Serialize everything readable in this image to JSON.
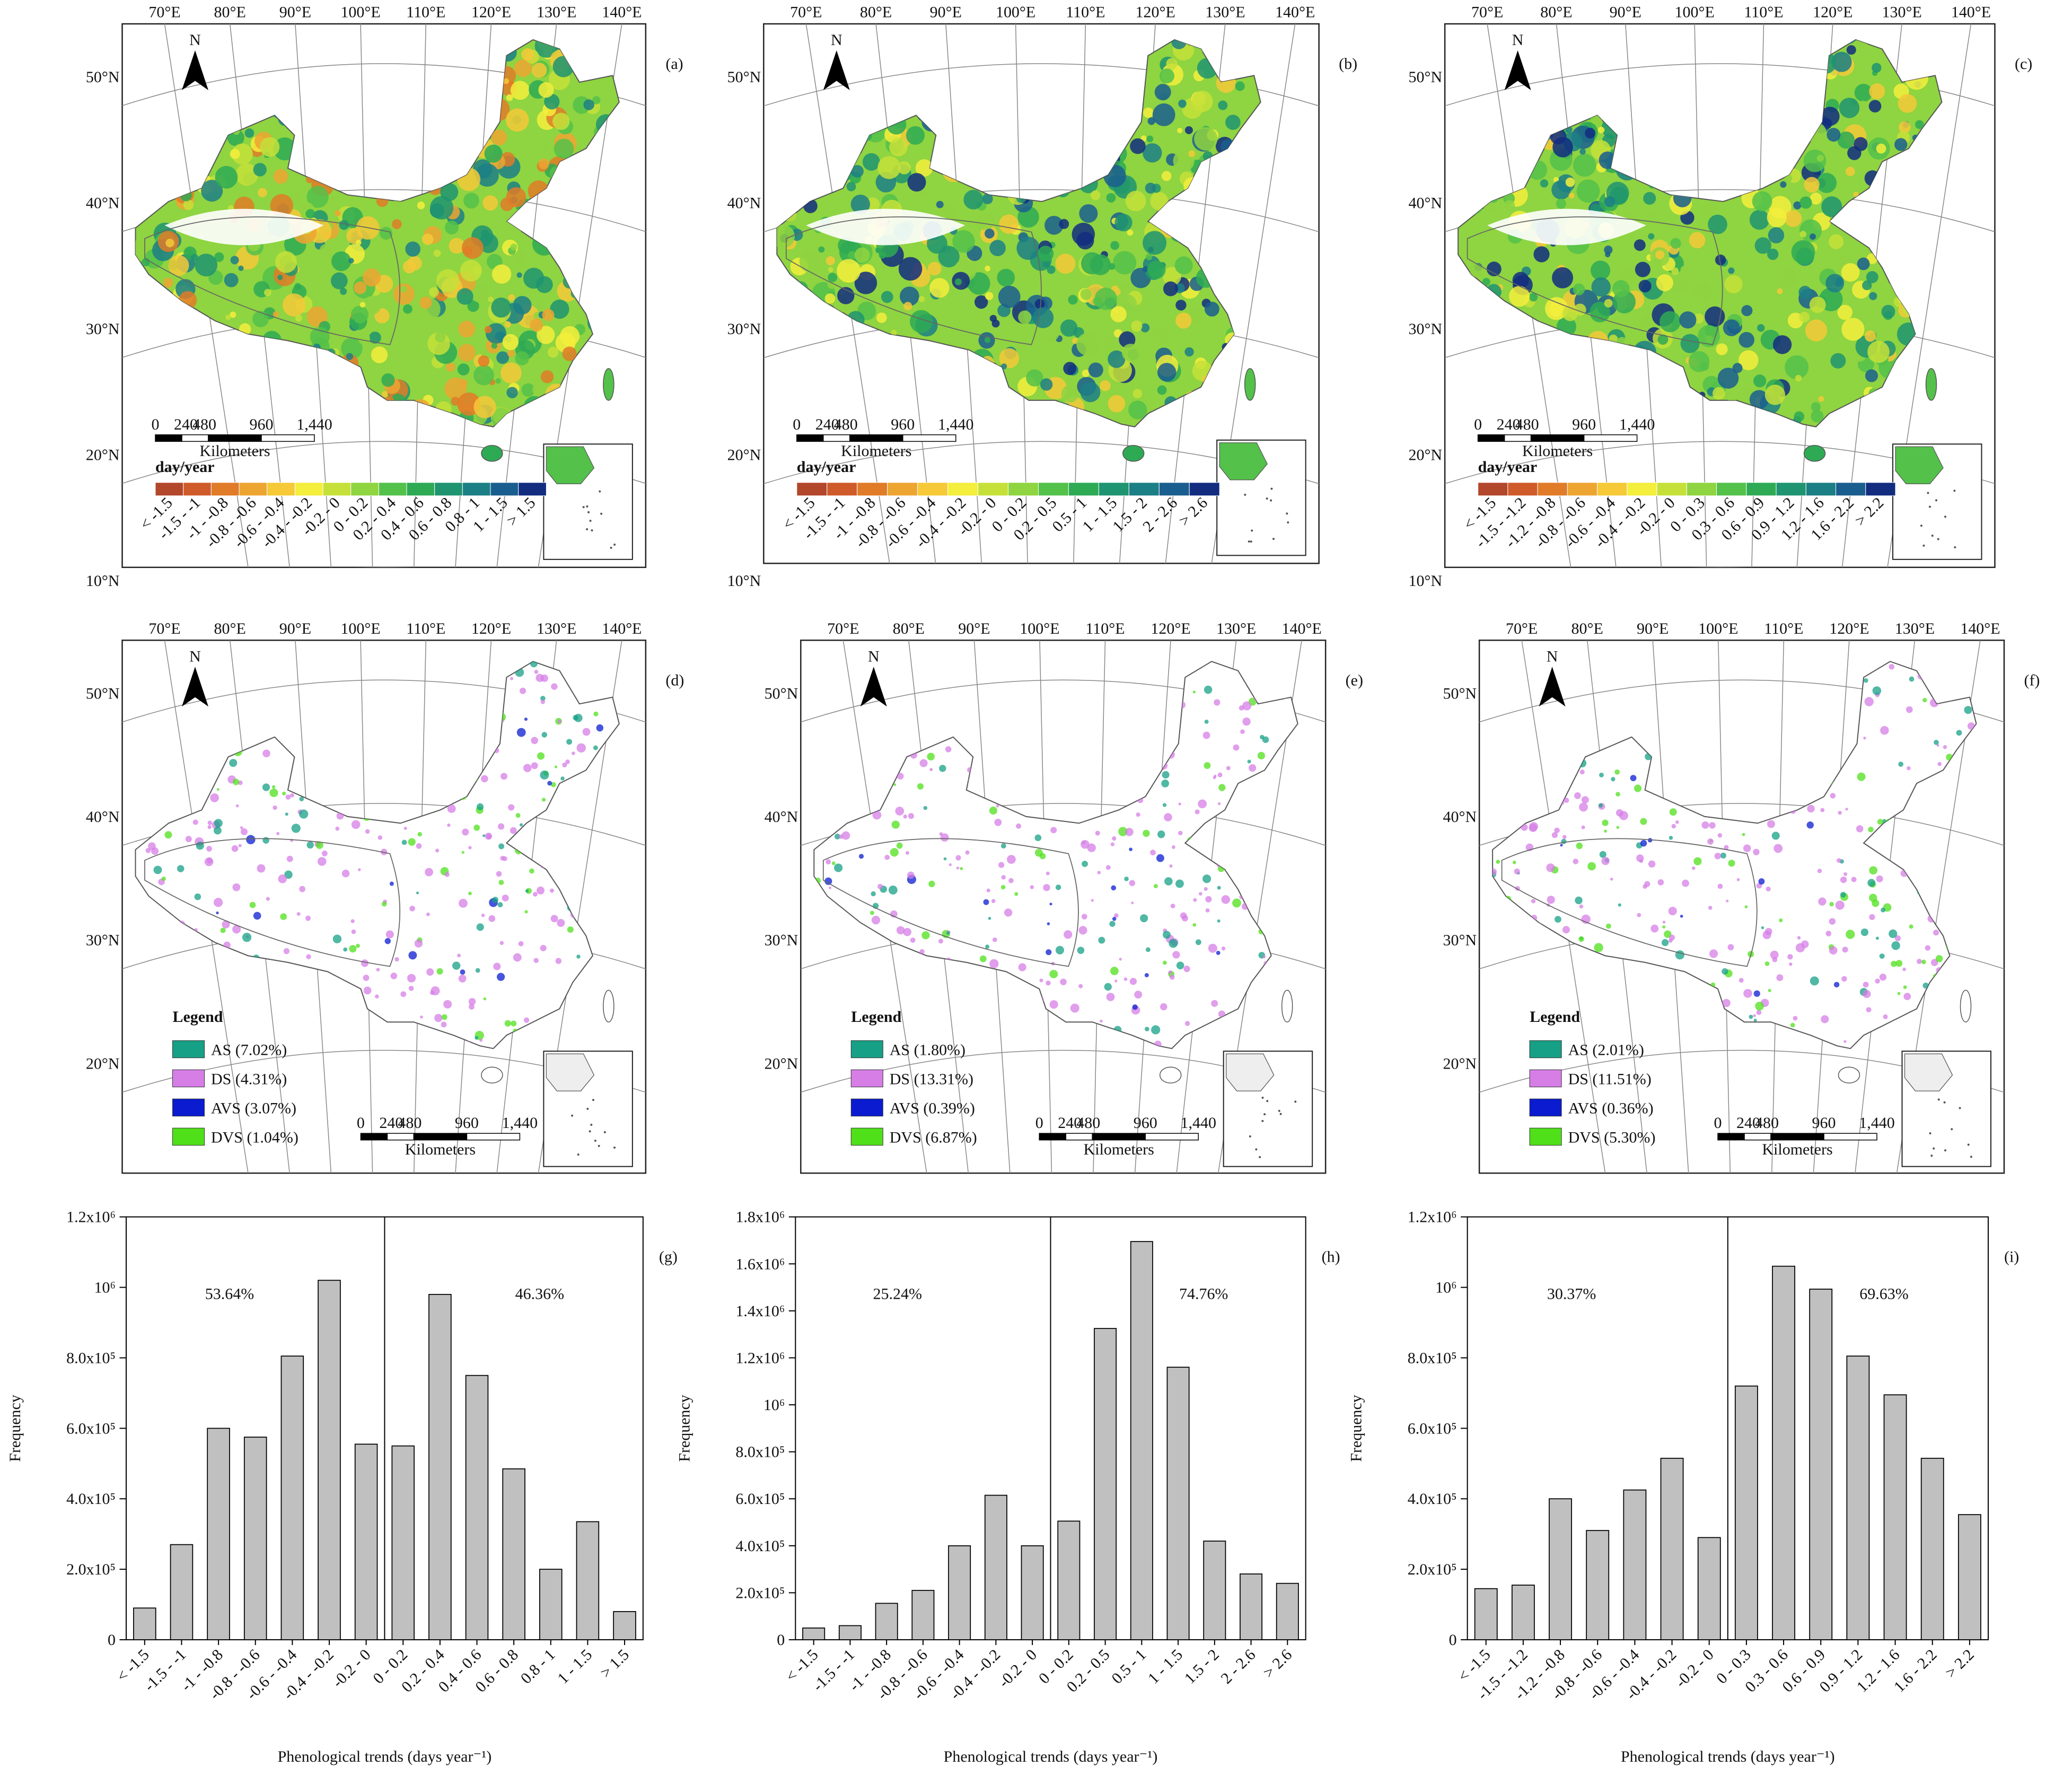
{
  "maps": [
    {
      "panel": "(a)",
      "north": "N",
      "lon_labels": [
        "70°E",
        "80°E",
        "90°E",
        "100°E",
        "110°E",
        "120°E",
        "130°E",
        "140°E"
      ],
      "lat_labels": [
        "50°N",
        "40°N",
        "30°N",
        "20°N",
        "10°N"
      ],
      "legend_title": "day/year",
      "legend": {
        "labels": [
          "< -1.5",
          "-1.5 - -1",
          "-1 - -0.8",
          "-0.8 - -0.6",
          "-0.6 - -0.4",
          "-0.4 - -0.2",
          "-0.2 - 0",
          "0 - 0.2",
          "0.2 - 0.4",
          "0.4 - 0.6",
          "0.6 - 0.8",
          "0.8 - 1",
          "1 - 1.5",
          "> 1.5"
        ],
        "colors": [
          "#b2472b",
          "#cf5b2b",
          "#e07b28",
          "#eda532",
          "#f5c938",
          "#f4ee3c",
          "#c6e03a",
          "#8fd441",
          "#53c14a",
          "#2eaa55",
          "#1f9470",
          "#1c7f86",
          "#1a5e8f",
          "#122d80"
        ]
      },
      "scale": {
        "labels": [
          "0",
          "240",
          "480",
          "960",
          "1,440"
        ],
        "unit": "Kilometers"
      }
    },
    {
      "panel": "(b)",
      "north": "N",
      "lon_labels": [
        "70°E",
        "80°E",
        "90°E",
        "100°E",
        "110°E",
        "120°E",
        "130°E",
        "140°E"
      ],
      "lat_labels": [
        "50°N",
        "40°N",
        "30°N",
        "20°N",
        "10°N"
      ],
      "legend_title": "day/year",
      "legend": {
        "labels": [
          "< -1.5",
          "-1.5 - -1",
          "-1 - -0.8",
          "-0.8 - -0.6",
          "-0.6 - -0.4",
          "-0.4 - -0.2",
          "-0.2 - 0",
          "0 - 0.2",
          "0.2 - 0.5",
          "0.5 - 1",
          "1 - 1.5",
          "1.5 - 2",
          "2 - 2.6",
          "> 2.6"
        ],
        "colors": [
          "#b2472b",
          "#cf5b2b",
          "#e07b28",
          "#eda532",
          "#f5c938",
          "#f4ee3c",
          "#c6e03a",
          "#8fd441",
          "#53c14a",
          "#2eaa55",
          "#1f9470",
          "#1c7f86",
          "#1a5e8f",
          "#122d80"
        ]
      },
      "scale": {
        "labels": [
          "0",
          "240",
          "480",
          "960",
          "1,440"
        ],
        "unit": "Kilometers"
      }
    },
    {
      "panel": "(c)",
      "north": "N",
      "lon_labels": [
        "70°E",
        "80°E",
        "90°E",
        "100°E",
        "110°E",
        "120°E",
        "130°E",
        "140°E"
      ],
      "lat_labels": [
        "50°N",
        "40°N",
        "30°N",
        "20°N",
        "10°N"
      ],
      "legend_title": "day/year",
      "legend": {
        "labels": [
          "< -1.5",
          "-1.5 - -1.2",
          "-1.2 - -0.8",
          "-0.8 - -0.6",
          "-0.6 - -0.4",
          "-0.4 - -0.2",
          "-0.2 - 0",
          "0 - 0.3",
          "0.3 - 0.6",
          "0.6 - 0.9",
          "0.9 - 1.2",
          "1.2 - 1.6",
          "1.6 - 2.2",
          "> 2.2"
        ],
        "colors": [
          "#b2472b",
          "#cf5b2b",
          "#e07b28",
          "#eda532",
          "#f5c938",
          "#f4ee3c",
          "#c6e03a",
          "#8fd441",
          "#53c14a",
          "#2eaa55",
          "#1f9470",
          "#1c7f86",
          "#1a5e8f",
          "#122d80"
        ]
      },
      "scale": {
        "labels": [
          "0",
          "240",
          "480",
          "960",
          "1,440"
        ],
        "unit": "Kilometers"
      }
    },
    {
      "panel": "(d)",
      "north": "N",
      "lon_labels": [
        "70°E",
        "80°E",
        "90°E",
        "100°E",
        "110°E",
        "120°E",
        "130°E",
        "140°E"
      ],
      "lat_labels": [
        "50°N",
        "40°N",
        "30°N",
        "20°N"
      ],
      "legend_title": "Legend",
      "legend": {
        "labels": [
          "AS (7.02%)",
          "DS (4.31%)",
          "AVS (3.07%)",
          "DVS (1.04%)"
        ],
        "colors": [
          "#16a085",
          "#d67ee6",
          "#0a1bd0",
          "#4fe01a"
        ]
      },
      "scale": {
        "labels": [
          "0",
          "240",
          "480",
          "960",
          "1,440"
        ],
        "unit": "Kilometers"
      }
    },
    {
      "panel": "(e)",
      "north": "N",
      "lon_labels": [
        "70°E",
        "80°E",
        "90°E",
        "100°E",
        "110°E",
        "120°E",
        "130°E",
        "140°E"
      ],
      "lat_labels": [
        "50°N",
        "40°N",
        "30°N",
        "20°N"
      ],
      "legend_title": "Legend",
      "legend": {
        "labels": [
          "AS (1.80%)",
          "DS (13.31%)",
          "AVS (0.39%)",
          "DVS (6.87%)"
        ],
        "colors": [
          "#16a085",
          "#d67ee6",
          "#0a1bd0",
          "#4fe01a"
        ]
      },
      "scale": {
        "labels": [
          "0",
          "240",
          "480",
          "960",
          "1,440"
        ],
        "unit": "Kilometers"
      }
    },
    {
      "panel": "(f)",
      "north": "N",
      "lon_labels": [
        "70°E",
        "80°E",
        "90°E",
        "100°E",
        "110°E",
        "120°E",
        "130°E",
        "140°E"
      ],
      "lat_labels": [
        "50°N",
        "40°N",
        "30°N",
        "20°N"
      ],
      "legend_title": "Legend",
      "legend": {
        "labels": [
          "AS (2.01%)",
          "DS (11.51%)",
          "AVS (0.36%)",
          "DVS (5.30%)"
        ],
        "colors": [
          "#16a085",
          "#d67ee6",
          "#0a1bd0",
          "#4fe01a"
        ]
      },
      "scale": {
        "labels": [
          "0",
          "240",
          "480",
          "960",
          "1,440"
        ],
        "unit": "Kilometers"
      }
    }
  ],
  "chart_data": [
    {
      "type": "bar",
      "label": "(g)",
      "x_label": "Phenological trends (days year⁻¹)",
      "y_label": "Frequency",
      "color": "#c0c0c0",
      "categories": [
        "< -1.5",
        "-1.5 - -1",
        "-1 - -0.8",
        "-0.8 - -0.6",
        "-0.6 - -0.4",
        "-0.4 - -0.2",
        "-0.2 - 0",
        "0 - 0.2",
        "0.2 - 0.4",
        "0.4 - 0.6",
        "0.6 - 0.8",
        "0.8 - 1",
        "1 - 1.5",
        "> 1.5"
      ],
      "values": [
        90000,
        270000,
        600000,
        575000,
        805000,
        1020000,
        555000,
        550000,
        980000,
        750000,
        485000,
        200000,
        335000,
        80000
      ],
      "ylim": [
        0,
        1200000
      ],
      "yticks": [
        0,
        {
          "value": 200000,
          "label": "2.0x10⁵"
        },
        {
          "value": 400000,
          "label": "4.0x10⁵"
        },
        {
          "value": 600000,
          "label": "6.0x10⁵"
        },
        {
          "value": 800000,
          "label": "8.0x10⁵"
        },
        {
          "value": 1000000,
          "label": "10⁶"
        },
        {
          "value": 1200000,
          "label": "1.2x10⁶"
        }
      ],
      "annotations": [
        "53.64%",
        "46.36%"
      ]
    },
    {
      "type": "bar",
      "label": "(h)",
      "x_label": "Phenological trends (days year⁻¹)",
      "y_label": "Frequency",
      "color": "#c0c0c0",
      "categories": [
        "< -1.5",
        "-1.5 - -1",
        "-1 - -0.8",
        "-0.8 - -0.6",
        "-0.6 - -0.4",
        "-0.4 - -0.2",
        "-0.2 - 0",
        "0 - 0.2",
        "0.2 - 0.5",
        "0.5 - 1",
        "1 - 1.5",
        "1.5 - 2",
        "2 - 2.6",
        "> 2.6"
      ],
      "values": [
        50000,
        60000,
        155000,
        210000,
        400000,
        615000,
        400000,
        505000,
        1325000,
        1695000,
        1160000,
        420000,
        280000,
        240000
      ],
      "ylim": [
        0,
        1800000
      ],
      "yticks": [
        0,
        {
          "value": 200000,
          "label": "2.0x10⁵"
        },
        {
          "value": 400000,
          "label": "4.0x10⁵"
        },
        {
          "value": 600000,
          "label": "6.0x10⁵"
        },
        {
          "value": 800000,
          "label": "8.0x10⁵"
        },
        {
          "value": 1000000,
          "label": "10⁶"
        },
        {
          "value": 1200000,
          "label": "1.2x10⁶"
        },
        {
          "value": 1400000,
          "label": "1.4x10⁶"
        },
        {
          "value": 1600000,
          "label": "1.6x10⁶"
        },
        {
          "value": 1800000,
          "label": "1.8x10⁶"
        }
      ],
      "annotations": [
        "25.24%",
        "74.76%"
      ]
    },
    {
      "type": "bar",
      "label": "(i)",
      "x_label": "Phenological trends (days year⁻¹)",
      "y_label": "Frequency",
      "color": "#c0c0c0",
      "categories": [
        "< -1.5",
        "-1.5 - -1.2",
        "-1.2 - -0.8",
        "-0.8 - -0.6",
        "-0.6 - -0.4",
        "-0.4 - -0.2",
        "-0.2 - 0",
        "0 - 0.3",
        "0.3 - 0.6",
        "0.6 - 0.9",
        "0.9 - 1.2",
        "1.2 - 1.6",
        "1.6 - 2.2",
        "> 2.2"
      ],
      "values": [
        145000,
        155000,
        400000,
        310000,
        425000,
        515000,
        290000,
        720000,
        1060000,
        995000,
        805000,
        695000,
        515000,
        355000
      ],
      "ylim": [
        0,
        1200000
      ],
      "yticks": [
        0,
        {
          "value": 200000,
          "label": "2.0x10⁵"
        },
        {
          "value": 400000,
          "label": "4.0x10⁵"
        },
        {
          "value": 600000,
          "label": "6.0x10⁵"
        },
        {
          "value": 800000,
          "label": "8.0x10⁵"
        },
        {
          "value": 1000000,
          "label": "10⁶"
        },
        {
          "value": 1200000,
          "label": "1.2x10⁶"
        }
      ],
      "annotations": [
        "30.37%",
        "69.63%"
      ]
    }
  ]
}
